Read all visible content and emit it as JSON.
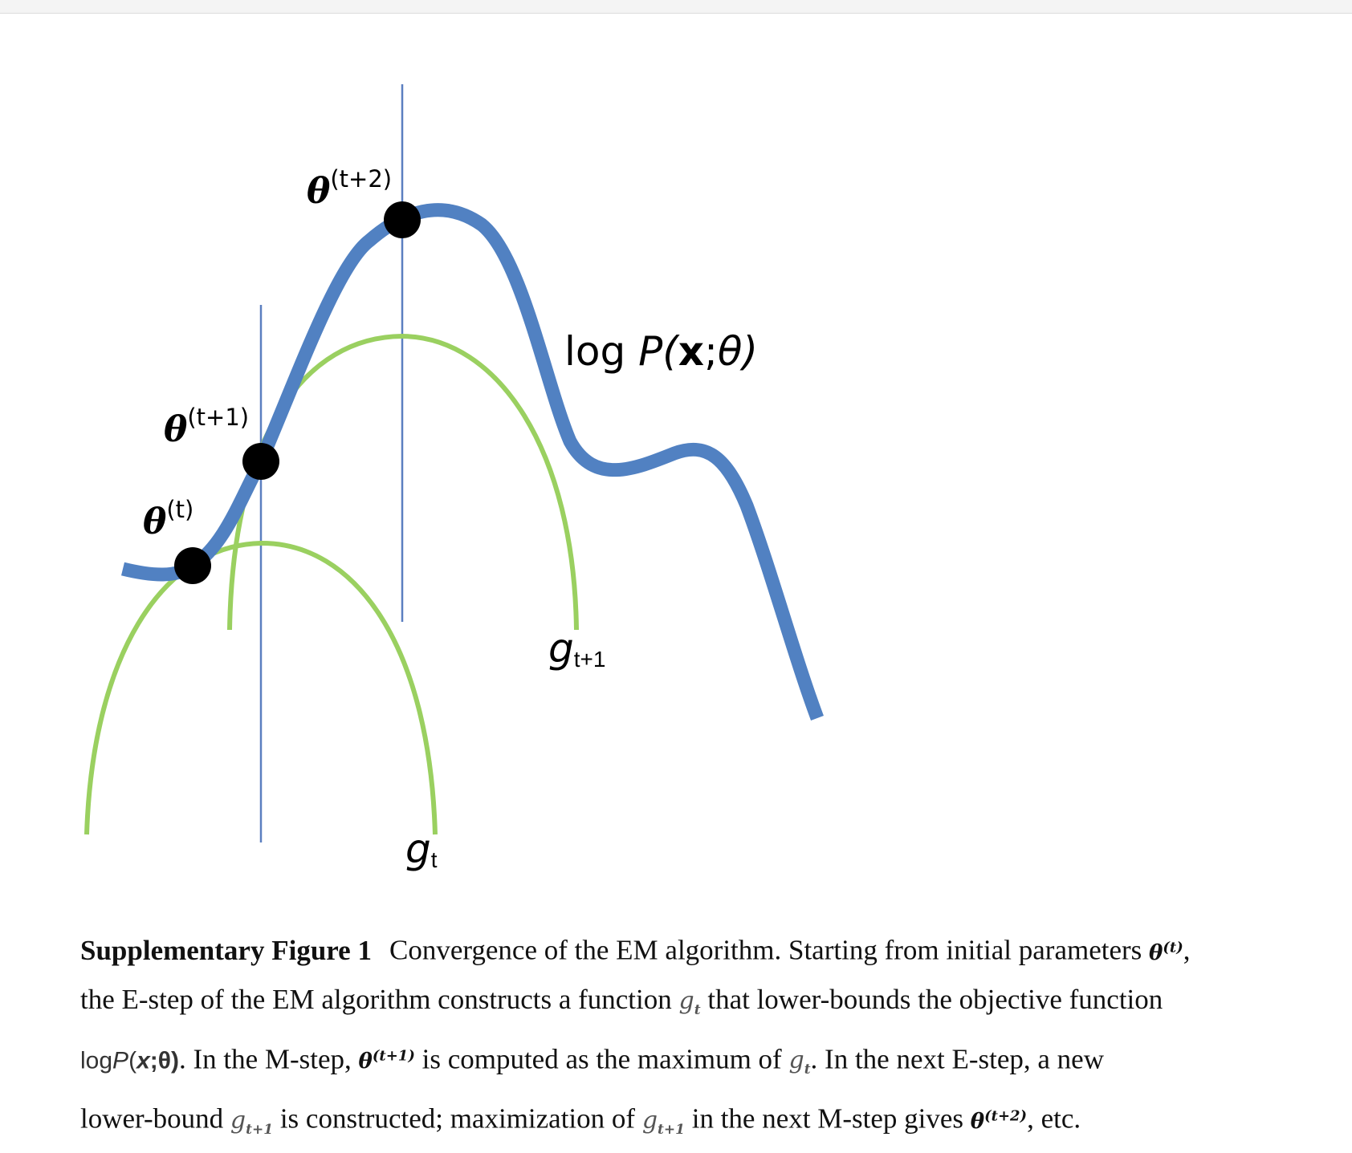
{
  "figure": {
    "theta_symbol": "θ",
    "theta_t_sup": "(t)",
    "theta_t1_sup": "(t+1)",
    "theta_t2_sup": "(t+2)",
    "logp_prefix": "log ",
    "logp_P": "P(",
    "logp_x": "x",
    "logp_sep": ";",
    "logp_theta": "θ",
    "logp_close": ")",
    "g_symbol": "g",
    "g_t_sub": "t",
    "g_t1_sub": "t+1",
    "colors": {
      "objective_curve": "#5181c2",
      "lower_bound_curve": "#9ad060",
      "vertical_line": "#5b7fc0",
      "point": "#000000"
    }
  },
  "caption": {
    "label": "Supplementary Figure 1",
    "line1_text": "Convergence of the EM algorithm.  Starting from initial parameters ",
    "line1_theta": "θ",
    "line1_sup": "(t)",
    "line1_end": ",",
    "line2_a": "the E-step of the EM algorithm constructs a function ",
    "line2_g": "g",
    "line2_g_sub": "t",
    "line2_b": " that lower-bounds the objective function",
    "line3_log": "log",
    "line3_P": "P",
    "line3_args_open": "(",
    "line3_x": "x",
    "line3_args_rest": ";θ)",
    "line3_a": ".  In the M-step, ",
    "line3_theta": "θ",
    "line3_theta_sup": "(t+1)",
    "line3_b": " is computed as the maximum of ",
    "line3_g": "g",
    "line3_g_sub": "t",
    "line3_c": ".  In the next E-step, a new",
    "line4_a": "lower-bound ",
    "line4_g": "g",
    "line4_g_sub": "t+1",
    "line4_b": " is constructed; maximization of ",
    "line4_g2": "g",
    "line4_g2_sub": "t+1",
    "line4_c": " in the next M-step gives ",
    "line4_theta": "θ",
    "line4_theta_sup": "(t+2)",
    "line4_d": ", etc."
  }
}
